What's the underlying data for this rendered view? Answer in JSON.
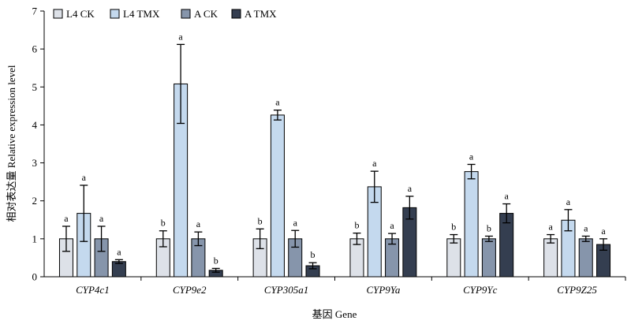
{
  "chart_data": {
    "type": "bar",
    "xlabel": "基因 Gene",
    "ylabel": "相对表达量 Relative expression level",
    "ylim": [
      0,
      7
    ],
    "yticks": [
      0,
      1,
      2,
      3,
      4,
      5,
      6,
      7
    ],
    "grid": false,
    "legend_position": "top-left",
    "categories": [
      "CYP4c1",
      "CYP9e2",
      "CYP305a1",
      "CYP9Ya",
      "CYP9Yc",
      "CYP9Z25"
    ],
    "series": [
      {
        "name": "L4 CK",
        "color": "#dde1e8",
        "values": [
          1.0,
          1.0,
          1.0,
          1.0,
          1.0,
          1.0
        ],
        "errors": [
          0.33,
          0.21,
          0.26,
          0.15,
          0.11,
          0.11
        ],
        "labels": [
          "a",
          "b",
          "b",
          "b",
          "b",
          "a"
        ]
      },
      {
        "name": "L4 TMX",
        "color": "#c4d9ee",
        "values": [
          1.67,
          5.08,
          4.26,
          2.37,
          2.77,
          1.49
        ],
        "errors": [
          0.74,
          1.04,
          0.13,
          0.41,
          0.19,
          0.28
        ],
        "labels": [
          "a",
          "a",
          "a",
          "a",
          "a",
          "a"
        ]
      },
      {
        "name": "A CK",
        "color": "#8695ab",
        "values": [
          1.0,
          1.0,
          1.0,
          1.0,
          1.0,
          1.0
        ],
        "errors": [
          0.33,
          0.18,
          0.22,
          0.14,
          0.07,
          0.07
        ],
        "labels": [
          "a",
          "a",
          "a",
          "a",
          "b",
          "a"
        ]
      },
      {
        "name": "A TMX",
        "color": "#343e50",
        "values": [
          0.4,
          0.17,
          0.29,
          1.82,
          1.67,
          0.85
        ],
        "errors": [
          0.05,
          0.05,
          0.08,
          0.3,
          0.25,
          0.15
        ],
        "labels": [
          "a",
          "b",
          "b",
          "a",
          "a",
          "a"
        ]
      }
    ]
  }
}
